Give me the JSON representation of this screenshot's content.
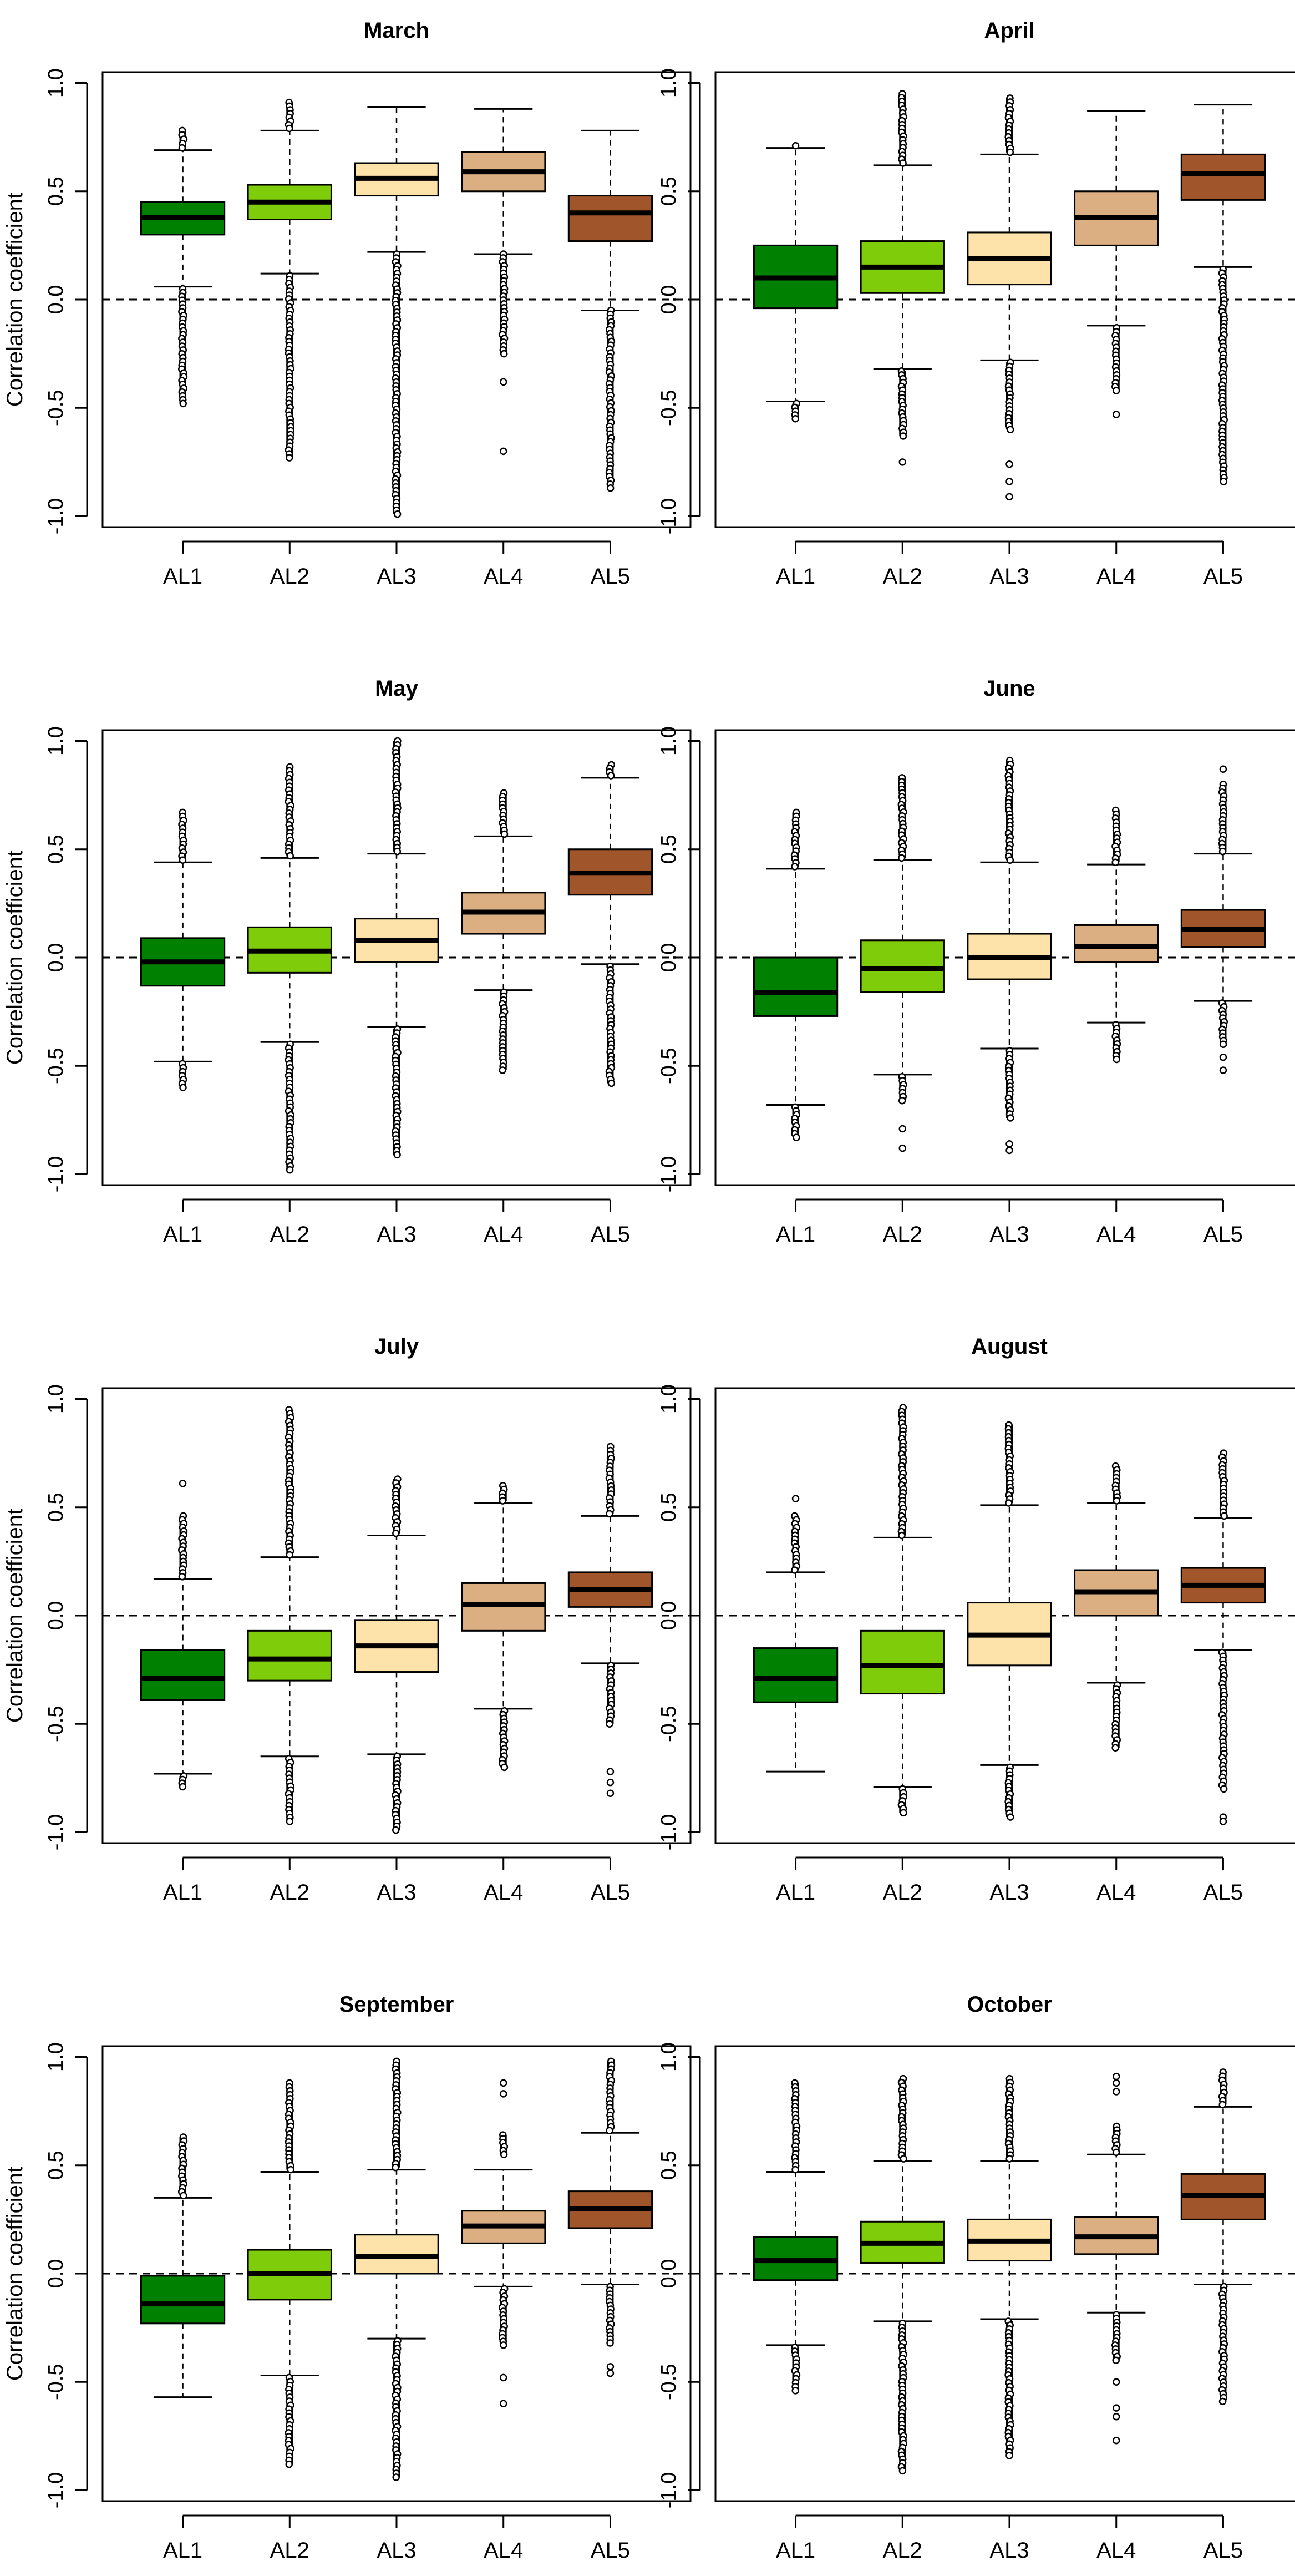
{
  "figure": {
    "ylabel": "Correlation coefficient"
  },
  "box_colors": [
    "#008000",
    "#7fcc0a",
    "#fde2a9",
    "#dcaf83",
    "#a0562a"
  ],
  "chart_data": [
    {
      "type": "boxplot",
      "title": "March",
      "ylabel": "Correlation coefficient",
      "categories": [
        "AL1",
        "AL2",
        "AL3",
        "AL4",
        "AL5"
      ],
      "yticks": [
        "-1.0",
        "-0.5",
        "0.0",
        "0.5",
        "1.0"
      ],
      "ylim": [
        -1.05,
        1.05
      ],
      "reference_line": 0.0,
      "boxes": [
        {
          "category": "AL1",
          "whisker_low": 0.06,
          "q1": 0.3,
          "median": 0.38,
          "q3": 0.45,
          "whisker_high": 0.69,
          "outliers_low": [
            0.05,
            -0.48
          ],
          "outliers_high": [
            0.7,
            0.78
          ]
        },
        {
          "category": "AL2",
          "whisker_low": 0.12,
          "q1": 0.37,
          "median": 0.45,
          "q3": 0.53,
          "whisker_high": 0.78,
          "outliers_low": [
            0.11,
            -0.73
          ],
          "outliers_high": [
            0.79,
            0.91
          ]
        },
        {
          "category": "AL3",
          "whisker_low": 0.22,
          "q1": 0.48,
          "median": 0.56,
          "q3": 0.63,
          "whisker_high": 0.89,
          "outliers_low": [
            0.21,
            -0.99
          ],
          "outliers_high": []
        },
        {
          "category": "AL4",
          "whisker_low": 0.21,
          "q1": 0.5,
          "median": 0.59,
          "q3": 0.68,
          "whisker_high": 0.88,
          "outliers_low": [
            0.21,
            -0.25
          ],
          "outliers_high": [],
          "outliers_isolated": [
            -0.38,
            -0.7
          ]
        },
        {
          "category": "AL5",
          "whisker_low": -0.05,
          "q1": 0.27,
          "median": 0.4,
          "q3": 0.48,
          "whisker_high": 0.78,
          "outliers_low": [
            -0.05,
            -0.87
          ],
          "outliers_high": []
        }
      ]
    },
    {
      "type": "boxplot",
      "title": "April",
      "ylabel": "",
      "categories": [
        "AL1",
        "AL2",
        "AL3",
        "AL4",
        "AL5"
      ],
      "yticks": [
        "-1.0",
        "-0.5",
        "0.0",
        "0.5",
        "1.0"
      ],
      "ylim": [
        -1.05,
        1.05
      ],
      "reference_line": 0.0,
      "boxes": [
        {
          "category": "AL1",
          "whisker_low": -0.47,
          "q1": -0.04,
          "median": 0.1,
          "q3": 0.25,
          "whisker_high": 0.7,
          "outliers_low": [
            -0.48,
            -0.55
          ],
          "outliers_high": [
            0.71
          ]
        },
        {
          "category": "AL2",
          "whisker_low": -0.32,
          "q1": 0.03,
          "median": 0.15,
          "q3": 0.27,
          "whisker_high": 0.62,
          "outliers_low": [
            -0.33,
            -0.63
          ],
          "outliers_high": [
            0.63,
            0.95
          ],
          "outliers_isolated": [
            -0.75
          ]
        },
        {
          "category": "AL3",
          "whisker_low": -0.28,
          "q1": 0.07,
          "median": 0.19,
          "q3": 0.31,
          "whisker_high": 0.67,
          "outliers_low": [
            -0.29,
            -0.6
          ],
          "outliers_high": [
            0.68,
            0.93
          ],
          "outliers_isolated": [
            -0.76,
            -0.84,
            -0.91
          ]
        },
        {
          "category": "AL4",
          "whisker_low": -0.12,
          "q1": 0.25,
          "median": 0.38,
          "q3": 0.5,
          "whisker_high": 0.87,
          "outliers_low": [
            -0.13,
            -0.42
          ],
          "outliers_high": [],
          "outliers_isolated": [
            -0.53
          ]
        },
        {
          "category": "AL5",
          "whisker_low": 0.15,
          "q1": 0.46,
          "median": 0.58,
          "q3": 0.67,
          "whisker_high": 0.9,
          "outliers_low": [
            0.14,
            -0.84
          ],
          "outliers_high": []
        }
      ]
    },
    {
      "type": "boxplot",
      "title": "May",
      "ylabel": "Correlation coefficient",
      "categories": [
        "AL1",
        "AL2",
        "AL3",
        "AL4",
        "AL5"
      ],
      "yticks": [
        "-1.0",
        "-0.5",
        "0.0",
        "0.5",
        "1.0"
      ],
      "ylim": [
        -1.05,
        1.05
      ],
      "reference_line": 0.0,
      "boxes": [
        {
          "category": "AL1",
          "whisker_low": -0.48,
          "q1": -0.13,
          "median": -0.02,
          "q3": 0.09,
          "whisker_high": 0.44,
          "outliers_low": [
            -0.49,
            -0.6
          ],
          "outliers_high": [
            0.45,
            0.67
          ]
        },
        {
          "category": "AL2",
          "whisker_low": -0.39,
          "q1": -0.07,
          "median": 0.03,
          "q3": 0.14,
          "whisker_high": 0.46,
          "outliers_low": [
            -0.4,
            -0.98
          ],
          "outliers_high": [
            0.47,
            0.88
          ]
        },
        {
          "category": "AL3",
          "whisker_low": -0.32,
          "q1": -0.02,
          "median": 0.08,
          "q3": 0.18,
          "whisker_high": 0.48,
          "outliers_low": [
            -0.33,
            -0.91
          ],
          "outliers_high": [
            0.49,
            1.0
          ]
        },
        {
          "category": "AL4",
          "whisker_low": -0.15,
          "q1": 0.11,
          "median": 0.21,
          "q3": 0.3,
          "whisker_high": 0.56,
          "outliers_low": [
            -0.16,
            -0.52
          ],
          "outliers_high": [
            0.57,
            0.76
          ]
        },
        {
          "category": "AL5",
          "whisker_low": -0.03,
          "q1": 0.29,
          "median": 0.39,
          "q3": 0.5,
          "whisker_high": 0.83,
          "outliers_low": [
            -0.04,
            -0.58
          ],
          "outliers_high": [
            0.84,
            0.89
          ]
        }
      ]
    },
    {
      "type": "boxplot",
      "title": "June",
      "ylabel": "",
      "categories": [
        "AL1",
        "AL2",
        "AL3",
        "AL4",
        "AL5"
      ],
      "yticks": [
        "-1.0",
        "-0.5",
        "0.0",
        "0.5",
        "1.0"
      ],
      "ylim": [
        -1.05,
        1.05
      ],
      "reference_line": 0.0,
      "boxes": [
        {
          "category": "AL1",
          "whisker_low": -0.68,
          "q1": -0.27,
          "median": -0.16,
          "q3": 0.0,
          "whisker_high": 0.41,
          "outliers_low": [
            -0.69,
            -0.83
          ],
          "outliers_high": [
            0.42,
            0.67
          ]
        },
        {
          "category": "AL2",
          "whisker_low": -0.54,
          "q1": -0.16,
          "median": -0.05,
          "q3": 0.08,
          "whisker_high": 0.45,
          "outliers_low": [
            -0.55,
            -0.66
          ],
          "outliers_high": [
            0.46,
            0.83
          ],
          "outliers_isolated": [
            -0.79,
            -0.88
          ]
        },
        {
          "category": "AL3",
          "whisker_low": -0.42,
          "q1": -0.1,
          "median": 0.0,
          "q3": 0.11,
          "whisker_high": 0.44,
          "outliers_low": [
            -0.43,
            -0.74
          ],
          "outliers_high": [
            0.45,
            0.91
          ],
          "outliers_isolated": [
            -0.86,
            -0.89
          ]
        },
        {
          "category": "AL4",
          "whisker_low": -0.3,
          "q1": -0.02,
          "median": 0.05,
          "q3": 0.15,
          "whisker_high": 0.43,
          "outliers_low": [
            -0.31,
            -0.47
          ],
          "outliers_high": [
            0.44,
            0.68
          ]
        },
        {
          "category": "AL5",
          "whisker_low": -0.2,
          "q1": 0.05,
          "median": 0.13,
          "q3": 0.22,
          "whisker_high": 0.48,
          "outliers_low": [
            -0.21,
            -0.4
          ],
          "outliers_high": [
            0.49,
            0.8
          ],
          "outliers_isolated": [
            -0.46,
            -0.52,
            0.87
          ]
        }
      ]
    },
    {
      "type": "boxplot",
      "title": "July",
      "ylabel": "Correlation coefficient",
      "categories": [
        "AL1",
        "AL2",
        "AL3",
        "AL4",
        "AL5"
      ],
      "yticks": [
        "-1.0",
        "-0.5",
        "0.0",
        "0.5",
        "1.0"
      ],
      "ylim": [
        -1.05,
        1.05
      ],
      "reference_line": 0.0,
      "boxes": [
        {
          "category": "AL1",
          "whisker_low": -0.73,
          "q1": -0.39,
          "median": -0.29,
          "q3": -0.16,
          "whisker_high": 0.17,
          "outliers_low": [
            -0.74,
            -0.79
          ],
          "outliers_high": [
            0.18,
            0.46
          ],
          "outliers_isolated": [
            0.61
          ]
        },
        {
          "category": "AL2",
          "whisker_low": -0.65,
          "q1": -0.3,
          "median": -0.2,
          "q3": -0.07,
          "whisker_high": 0.27,
          "outliers_low": [
            -0.66,
            -0.95
          ],
          "outliers_high": [
            0.28,
            0.95
          ]
        },
        {
          "category": "AL3",
          "whisker_low": -0.64,
          "q1": -0.26,
          "median": -0.14,
          "q3": -0.02,
          "whisker_high": 0.37,
          "outliers_low": [
            -0.65,
            -0.99
          ],
          "outliers_high": [
            0.38,
            0.63
          ]
        },
        {
          "category": "AL4",
          "whisker_low": -0.43,
          "q1": -0.07,
          "median": 0.05,
          "q3": 0.15,
          "whisker_high": 0.52,
          "outliers_low": [
            -0.44,
            -0.7
          ],
          "outliers_high": [
            0.53,
            0.6
          ]
        },
        {
          "category": "AL5",
          "whisker_low": -0.22,
          "q1": 0.04,
          "median": 0.12,
          "q3": 0.2,
          "whisker_high": 0.46,
          "outliers_low": [
            -0.23,
            -0.5
          ],
          "outliers_high": [
            0.47,
            0.78
          ],
          "outliers_isolated": [
            -0.72,
            -0.77,
            -0.82
          ]
        }
      ]
    },
    {
      "type": "boxplot",
      "title": "August",
      "ylabel": "",
      "categories": [
        "AL1",
        "AL2",
        "AL3",
        "AL4",
        "AL5"
      ],
      "yticks": [
        "-1.0",
        "-0.5",
        "0.0",
        "0.5",
        "1.0"
      ],
      "ylim": [
        -1.05,
        1.05
      ],
      "reference_line": 0.0,
      "boxes": [
        {
          "category": "AL1",
          "whisker_low": -0.72,
          "q1": -0.4,
          "median": -0.29,
          "q3": -0.15,
          "whisker_high": 0.2,
          "outliers_low": [],
          "outliers_high": [
            0.21,
            0.46
          ],
          "outliers_isolated": [
            0.54
          ]
        },
        {
          "category": "AL2",
          "whisker_low": -0.79,
          "q1": -0.36,
          "median": -0.23,
          "q3": -0.07,
          "whisker_high": 0.36,
          "outliers_low": [
            -0.8,
            -0.91
          ],
          "outliers_high": [
            0.37,
            0.96
          ]
        },
        {
          "category": "AL3",
          "whisker_low": -0.69,
          "q1": -0.23,
          "median": -0.09,
          "q3": 0.06,
          "whisker_high": 0.51,
          "outliers_low": [
            -0.7,
            -0.93
          ],
          "outliers_high": [
            0.52,
            0.88
          ]
        },
        {
          "category": "AL4",
          "whisker_low": -0.31,
          "q1": 0.0,
          "median": 0.11,
          "q3": 0.21,
          "whisker_high": 0.52,
          "outliers_low": [
            -0.32,
            -0.61
          ],
          "outliers_high": [
            0.53,
            0.69
          ]
        },
        {
          "category": "AL5",
          "whisker_low": -0.16,
          "q1": 0.06,
          "median": 0.14,
          "q3": 0.22,
          "whisker_high": 0.45,
          "outliers_low": [
            -0.17,
            -0.8
          ],
          "outliers_high": [
            0.46,
            0.75
          ],
          "outliers_isolated": [
            -0.93,
            -0.95
          ]
        }
      ]
    },
    {
      "type": "boxplot",
      "title": "September",
      "ylabel": "Correlation coefficient",
      "categories": [
        "AL1",
        "AL2",
        "AL3",
        "AL4",
        "AL5"
      ],
      "yticks": [
        "-1.0",
        "-0.5",
        "0.0",
        "0.5",
        "1.0"
      ],
      "ylim": [
        -1.05,
        1.05
      ],
      "reference_line": 0.0,
      "boxes": [
        {
          "category": "AL1",
          "whisker_low": -0.57,
          "q1": -0.23,
          "median": -0.14,
          "q3": -0.01,
          "whisker_high": 0.35,
          "outliers_low": [],
          "outliers_high": [
            0.36,
            0.63
          ]
        },
        {
          "category": "AL2",
          "whisker_low": -0.47,
          "q1": -0.12,
          "median": 0.0,
          "q3": 0.11,
          "whisker_high": 0.47,
          "outliers_low": [
            -0.48,
            -0.88
          ],
          "outliers_high": [
            0.48,
            0.88
          ]
        },
        {
          "category": "AL3",
          "whisker_low": -0.3,
          "q1": 0.0,
          "median": 0.08,
          "q3": 0.18,
          "whisker_high": 0.48,
          "outliers_low": [
            -0.31,
            -0.94
          ],
          "outliers_high": [
            0.49,
            0.98
          ]
        },
        {
          "category": "AL4",
          "whisker_low": -0.06,
          "q1": 0.14,
          "median": 0.22,
          "q3": 0.29,
          "whisker_high": 0.48,
          "outliers_low": [
            -0.07,
            -0.33
          ],
          "outliers_high": [
            0.55,
            0.64
          ],
          "outliers_isolated": [
            -0.48,
            -0.6,
            0.83,
            0.88
          ]
        },
        {
          "category": "AL5",
          "whisker_low": -0.05,
          "q1": 0.21,
          "median": 0.3,
          "q3": 0.38,
          "whisker_high": 0.65,
          "outliers_low": [
            -0.06,
            -0.32
          ],
          "outliers_high": [
            0.66,
            0.98
          ],
          "outliers_isolated": [
            -0.43,
            -0.46
          ]
        }
      ]
    },
    {
      "type": "boxplot",
      "title": "October",
      "ylabel": "",
      "categories": [
        "AL1",
        "AL2",
        "AL3",
        "AL4",
        "AL5"
      ],
      "yticks": [
        "-1.0",
        "-0.5",
        "0.0",
        "0.5",
        "1.0"
      ],
      "ylim": [
        -1.05,
        1.05
      ],
      "reference_line": 0.0,
      "boxes": [
        {
          "category": "AL1",
          "whisker_low": -0.33,
          "q1": -0.03,
          "median": 0.06,
          "q3": 0.17,
          "whisker_high": 0.47,
          "outliers_low": [
            -0.34,
            -0.54
          ],
          "outliers_high": [
            0.48,
            0.88
          ]
        },
        {
          "category": "AL2",
          "whisker_low": -0.22,
          "q1": 0.05,
          "median": 0.14,
          "q3": 0.24,
          "whisker_high": 0.52,
          "outliers_low": [
            -0.23,
            -0.91
          ],
          "outliers_high": [
            0.53,
            0.9
          ]
        },
        {
          "category": "AL3",
          "whisker_low": -0.21,
          "q1": 0.06,
          "median": 0.15,
          "q3": 0.25,
          "whisker_high": 0.52,
          "outliers_low": [
            -0.22,
            -0.84
          ],
          "outliers_high": [
            0.53,
            0.9
          ]
        },
        {
          "category": "AL4",
          "whisker_low": -0.18,
          "q1": 0.09,
          "median": 0.17,
          "q3": 0.26,
          "whisker_high": 0.55,
          "outliers_low": [
            -0.19,
            -0.4
          ],
          "outliers_high": [
            0.56,
            0.68
          ],
          "outliers_isolated": [
            -0.5,
            -0.62,
            -0.66,
            -0.77,
            0.84,
            0.88,
            0.91
          ]
        },
        {
          "category": "AL5",
          "whisker_low": -0.05,
          "q1": 0.25,
          "median": 0.36,
          "q3": 0.46,
          "whisker_high": 0.77,
          "outliers_low": [
            -0.06,
            -0.59
          ],
          "outliers_high": [
            0.78,
            0.93
          ]
        }
      ]
    }
  ]
}
